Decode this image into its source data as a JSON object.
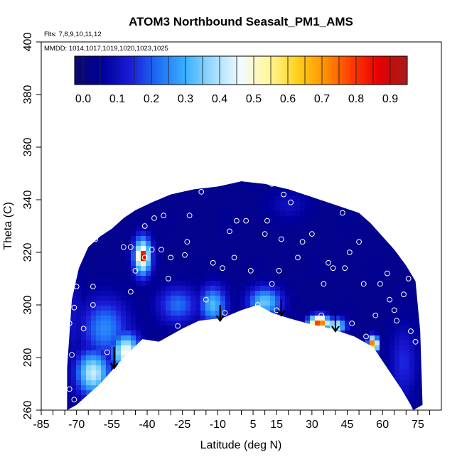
{
  "chart_data": {
    "type": "heatmap",
    "title": "ATOM3 Northbound Seasalt_PM1_AMS",
    "flights_note": "Flts: 7,8,9,10,11,12",
    "dates_note": "MMDD: 1014,1017,1019,1020,1023,1025",
    "xlabel": "Latitude (deg N)",
    "ylabel": "Theta (C)",
    "xlim": [
      -85,
      85
    ],
    "ylim": [
      260,
      400
    ],
    "x_ticks": [
      -85,
      -70,
      -55,
      -40,
      -25,
      -10,
      5,
      15,
      30,
      45,
      60,
      75
    ],
    "x_tick_labels": [
      "-85",
      "-70",
      "-55",
      "-40",
      "-25",
      "-10",
      "5",
      "15",
      "30",
      "45",
      "60",
      "75"
    ],
    "x_minor_ticks": [
      -80,
      -75,
      -65,
      -60,
      -50,
      -45,
      -35,
      -30,
      -20,
      -15,
      -5,
      0,
      10,
      20,
      25,
      35,
      40,
      50,
      55,
      65,
      70,
      80
    ],
    "y_ticks": [
      260,
      280,
      300,
      320,
      340,
      360,
      380,
      400
    ],
    "y_tick_labels": [
      "260",
      "280",
      "300",
      "320",
      "340",
      "360",
      "380",
      "400"
    ],
    "colorbar": {
      "range": [
        -0.025,
        0.95
      ],
      "ticks": [
        0.0,
        0.1,
        0.2,
        0.3,
        0.4,
        0.5,
        0.6,
        0.7,
        0.8,
        0.9
      ],
      "tick_labels": [
        "0.0",
        "0.1",
        "0.2",
        "0.3",
        "0.4",
        "0.5",
        "0.6",
        "0.7",
        "0.8",
        "0.9"
      ],
      "colors": [
        "#0a0a6e",
        "#00009c",
        "#1a1ad8",
        "#1f6ff5",
        "#3bb0ff",
        "#9fdcff",
        "#f3fbff",
        "#fff79a",
        "#ffd21e",
        "#ff9400",
        "#ff3a00",
        "#e60000",
        "#a31c1c"
      ]
    },
    "background_value": 0.03,
    "domain_upper": [
      [
        -74,
        276
      ],
      [
        -72,
        302
      ],
      [
        -69,
        314
      ],
      [
        -65,
        322
      ],
      [
        -60,
        326
      ],
      [
        -55,
        329
      ],
      [
        -50,
        333
      ],
      [
        -45,
        336
      ],
      [
        -38,
        339
      ],
      [
        -30,
        342
      ],
      [
        -20,
        344
      ],
      [
        -10,
        345
      ],
      [
        0,
        347
      ],
      [
        10,
        346
      ],
      [
        20,
        344
      ],
      [
        30,
        341
      ],
      [
        40,
        338
      ],
      [
        50,
        335
      ],
      [
        55,
        331
      ],
      [
        60,
        326
      ],
      [
        65,
        321
      ],
      [
        70,
        315
      ],
      [
        74,
        309
      ],
      [
        76,
        290
      ],
      [
        77,
        262
      ]
    ],
    "domain_lower": [
      [
        -74,
        260
      ],
      [
        -70,
        262
      ],
      [
        -60,
        270
      ],
      [
        -50,
        280
      ],
      [
        -42,
        287
      ],
      [
        -35,
        286
      ],
      [
        -25,
        291
      ],
      [
        -18,
        294
      ],
      [
        -8,
        295
      ],
      [
        0,
        298
      ],
      [
        7,
        300
      ],
      [
        13,
        297
      ],
      [
        20,
        295
      ],
      [
        28,
        293
      ],
      [
        38,
        291
      ],
      [
        48,
        288
      ],
      [
        56,
        284
      ],
      [
        62,
        276
      ],
      [
        68,
        268
      ],
      [
        72,
        262
      ],
      [
        73,
        260
      ]
    ],
    "features": [
      {
        "lat": -42,
        "theta": 318.5,
        "value": 0.93,
        "sigma_lat": 1.6,
        "sigma_theta": 2.5
      },
      {
        "lat": -42,
        "theta": 318.5,
        "value": 0.55,
        "sigma_lat": 2.6,
        "sigma_theta": 5
      },
      {
        "lat": -58,
        "theta": 291,
        "value": 0.25,
        "sigma_lat": 7,
        "sigma_theta": 8
      },
      {
        "lat": -63,
        "theta": 274,
        "value": 0.42,
        "sigma_lat": 5,
        "sigma_theta": 6
      },
      {
        "lat": -49,
        "theta": 282,
        "value": 0.48,
        "sigma_lat": 4,
        "sigma_theta": 5
      },
      {
        "lat": -27,
        "theta": 300,
        "value": 0.22,
        "sigma_lat": 6,
        "sigma_theta": 5
      },
      {
        "lat": -12,
        "theta": 300,
        "value": 0.32,
        "sigma_lat": 4,
        "sigma_theta": 5
      },
      {
        "lat": 10,
        "theta": 301,
        "value": 0.34,
        "sigma_lat": 5,
        "sigma_theta": 4
      },
      {
        "lat": 33,
        "theta": 293,
        "value": 0.8,
        "sigma_lat": 3,
        "sigma_theta": 2
      },
      {
        "lat": 40,
        "theta": 292,
        "value": 0.45,
        "sigma_lat": 3,
        "sigma_theta": 2
      },
      {
        "lat": 56,
        "theta": 285,
        "value": 0.78,
        "sigma_lat": 1.5,
        "sigma_theta": 2
      },
      {
        "lat": 69,
        "theta": 278,
        "value": 0.15,
        "sigma_lat": 4,
        "sigma_theta": 10
      },
      {
        "lat": -71,
        "theta": 295,
        "value": 0.11,
        "sigma_lat": 3,
        "sigma_theta": 12
      },
      {
        "lat": 20,
        "theta": 338,
        "value": 0.1,
        "sigma_lat": 6,
        "sigma_theta": 4
      }
    ],
    "sample_points": [
      [
        -71,
        264
      ],
      [
        -73,
        268
      ],
      [
        -72,
        281
      ],
      [
        -73,
        293
      ],
      [
        -71,
        299
      ],
      [
        -70,
        307
      ],
      [
        -67,
        291
      ],
      [
        -63,
        307
      ],
      [
        -63,
        300
      ],
      [
        -57,
        282
      ],
      [
        -62,
        325
      ],
      [
        -50,
        322
      ],
      [
        -47,
        322
      ],
      [
        -45,
        313
      ],
      [
        -47,
        305
      ],
      [
        -41,
        318
      ],
      [
        -38,
        321
      ],
      [
        -41,
        330
      ],
      [
        -37,
        333
      ],
      [
        -33,
        334
      ],
      [
        -34,
        321
      ],
      [
        -31,
        310
      ],
      [
        -30,
        318
      ],
      [
        -27,
        292
      ],
      [
        -24,
        319
      ],
      [
        -23,
        324
      ],
      [
        -22,
        334
      ],
      [
        -15,
        302
      ],
      [
        -12,
        316
      ],
      [
        -8,
        314
      ],
      [
        -7,
        297
      ],
      [
        -5,
        328
      ],
      [
        -3,
        318
      ],
      [
        -2,
        332
      ],
      [
        2,
        332
      ],
      [
        4,
        313
      ],
      [
        7,
        300
      ],
      [
        10,
        327
      ],
      [
        11,
        332
      ],
      [
        13,
        308
      ],
      [
        15,
        298
      ],
      [
        16,
        313
      ],
      [
        17,
        325
      ],
      [
        18,
        342
      ],
      [
        24,
        318
      ],
      [
        26,
        324
      ],
      [
        30,
        327
      ],
      [
        33,
        343
      ],
      [
        35,
        308
      ],
      [
        34,
        296
      ],
      [
        37,
        316
      ],
      [
        39,
        314
      ],
      [
        41,
        290
      ],
      [
        44,
        314
      ],
      [
        46,
        320
      ],
      [
        47,
        293
      ],
      [
        50,
        324
      ],
      [
        52,
        308
      ],
      [
        53,
        288
      ],
      [
        57,
        296
      ],
      [
        59,
        308
      ],
      [
        62,
        312
      ],
      [
        63,
        302
      ],
      [
        65,
        298
      ],
      [
        66,
        294
      ],
      [
        69,
        304
      ],
      [
        71,
        310
      ],
      [
        72,
        290
      ],
      [
        74,
        286
      ],
      [
        -17,
        343
      ],
      [
        -6,
        347
      ],
      [
        13,
        346
      ],
      [
        21,
        339
      ],
      [
        27,
        343
      ],
      [
        43,
        335
      ]
    ],
    "arrows": [
      {
        "lat": -54,
        "theta_top": 284,
        "theta_bottom": 276
      },
      {
        "lat": -9,
        "theta_top": 300,
        "theta_bottom": 294
      },
      {
        "lat": 17,
        "theta_top": 302,
        "theta_bottom": 296
      },
      {
        "lat": 40,
        "theta_top": 296,
        "theta_bottom": 290
      }
    ]
  }
}
